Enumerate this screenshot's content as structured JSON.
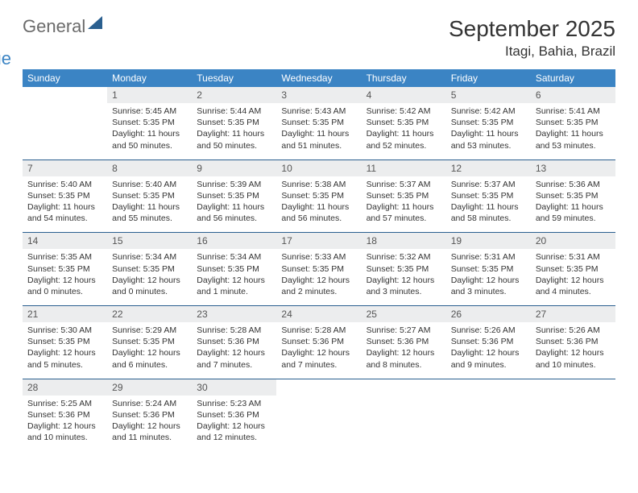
{
  "logo": {
    "word1": "General",
    "word2": "Blue"
  },
  "title": "September 2025",
  "location": "Itagi, Bahia, Brazil",
  "day_headers": [
    "Sunday",
    "Monday",
    "Tuesday",
    "Wednesday",
    "Thursday",
    "Friday",
    "Saturday"
  ],
  "colors": {
    "header_bg": "#3b84c4",
    "header_text": "#ffffff",
    "daynum_bg": "#ecedee",
    "rule": "#2a5f8f",
    "text": "#333333",
    "logo_gray": "#6b6b6b",
    "logo_blue": "#3b84c4"
  },
  "weeks": [
    {
      "nums": [
        "",
        "1",
        "2",
        "3",
        "4",
        "5",
        "6"
      ],
      "cells": [
        "",
        "Sunrise: 5:45 AM\nSunset: 5:35 PM\nDaylight: 11 hours and 50 minutes.",
        "Sunrise: 5:44 AM\nSunset: 5:35 PM\nDaylight: 11 hours and 50 minutes.",
        "Sunrise: 5:43 AM\nSunset: 5:35 PM\nDaylight: 11 hours and 51 minutes.",
        "Sunrise: 5:42 AM\nSunset: 5:35 PM\nDaylight: 11 hours and 52 minutes.",
        "Sunrise: 5:42 AM\nSunset: 5:35 PM\nDaylight: 11 hours and 53 minutes.",
        "Sunrise: 5:41 AM\nSunset: 5:35 PM\nDaylight: 11 hours and 53 minutes."
      ]
    },
    {
      "nums": [
        "7",
        "8",
        "9",
        "10",
        "11",
        "12",
        "13"
      ],
      "cells": [
        "Sunrise: 5:40 AM\nSunset: 5:35 PM\nDaylight: 11 hours and 54 minutes.",
        "Sunrise: 5:40 AM\nSunset: 5:35 PM\nDaylight: 11 hours and 55 minutes.",
        "Sunrise: 5:39 AM\nSunset: 5:35 PM\nDaylight: 11 hours and 56 minutes.",
        "Sunrise: 5:38 AM\nSunset: 5:35 PM\nDaylight: 11 hours and 56 minutes.",
        "Sunrise: 5:37 AM\nSunset: 5:35 PM\nDaylight: 11 hours and 57 minutes.",
        "Sunrise: 5:37 AM\nSunset: 5:35 PM\nDaylight: 11 hours and 58 minutes.",
        "Sunrise: 5:36 AM\nSunset: 5:35 PM\nDaylight: 11 hours and 59 minutes."
      ]
    },
    {
      "nums": [
        "14",
        "15",
        "16",
        "17",
        "18",
        "19",
        "20"
      ],
      "cells": [
        "Sunrise: 5:35 AM\nSunset: 5:35 PM\nDaylight: 12 hours and 0 minutes.",
        "Sunrise: 5:34 AM\nSunset: 5:35 PM\nDaylight: 12 hours and 0 minutes.",
        "Sunrise: 5:34 AM\nSunset: 5:35 PM\nDaylight: 12 hours and 1 minute.",
        "Sunrise: 5:33 AM\nSunset: 5:35 PM\nDaylight: 12 hours and 2 minutes.",
        "Sunrise: 5:32 AM\nSunset: 5:35 PM\nDaylight: 12 hours and 3 minutes.",
        "Sunrise: 5:31 AM\nSunset: 5:35 PM\nDaylight: 12 hours and 3 minutes.",
        "Sunrise: 5:31 AM\nSunset: 5:35 PM\nDaylight: 12 hours and 4 minutes."
      ]
    },
    {
      "nums": [
        "21",
        "22",
        "23",
        "24",
        "25",
        "26",
        "27"
      ],
      "cells": [
        "Sunrise: 5:30 AM\nSunset: 5:35 PM\nDaylight: 12 hours and 5 minutes.",
        "Sunrise: 5:29 AM\nSunset: 5:35 PM\nDaylight: 12 hours and 6 minutes.",
        "Sunrise: 5:28 AM\nSunset: 5:36 PM\nDaylight: 12 hours and 7 minutes.",
        "Sunrise: 5:28 AM\nSunset: 5:36 PM\nDaylight: 12 hours and 7 minutes.",
        "Sunrise: 5:27 AM\nSunset: 5:36 PM\nDaylight: 12 hours and 8 minutes.",
        "Sunrise: 5:26 AM\nSunset: 5:36 PM\nDaylight: 12 hours and 9 minutes.",
        "Sunrise: 5:26 AM\nSunset: 5:36 PM\nDaylight: 12 hours and 10 minutes."
      ]
    },
    {
      "nums": [
        "28",
        "29",
        "30",
        "",
        "",
        "",
        ""
      ],
      "cells": [
        "Sunrise: 5:25 AM\nSunset: 5:36 PM\nDaylight: 12 hours and 10 minutes.",
        "Sunrise: 5:24 AM\nSunset: 5:36 PM\nDaylight: 12 hours and 11 minutes.",
        "Sunrise: 5:23 AM\nSunset: 5:36 PM\nDaylight: 12 hours and 12 minutes.",
        "",
        "",
        "",
        ""
      ]
    }
  ]
}
